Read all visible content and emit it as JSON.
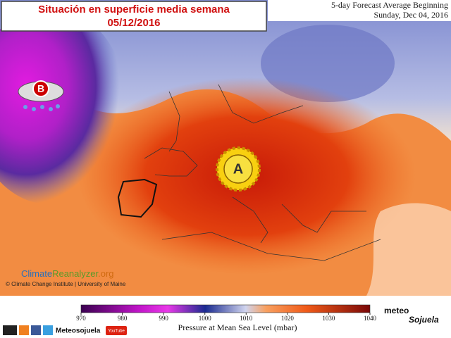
{
  "title": {
    "line1": "Situación en superficie media semana",
    "line2": "05/12/2016"
  },
  "forecast": {
    "line1": "5-day Forecast Average Beginning",
    "line2": "Sunday, Dec 04, 2016"
  },
  "map": {
    "low_label": "B",
    "high_label": "A"
  },
  "source": {
    "name_part1": "Climate",
    "name_part2": "Reanalyzer",
    "name_part3": ".org",
    "credit": "© Climate Change Institute | University of Maine"
  },
  "colorbar": {
    "ticks": [
      970,
      980,
      990,
      1000,
      1010,
      1020,
      1030,
      1040
    ],
    "label": "Pressure at Mean Sea Level (mbar)"
  },
  "branding": {
    "logo_top": "meteo",
    "logo_bottom": "Sojuela",
    "footer_name": "Meteosojuela",
    "youtube": "YouTube"
  }
}
